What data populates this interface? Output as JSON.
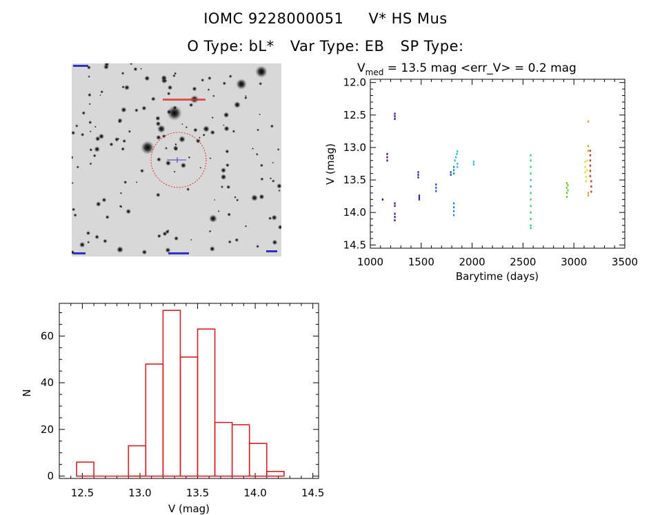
{
  "header": {
    "object_id": "IOMC 9228000051",
    "star_name": "V* HS Mus",
    "o_type_label": "O Type:",
    "o_type_value": "bL*",
    "var_type_label": "Var Type:",
    "var_type_value": "EB",
    "sp_type_label": "SP Type:",
    "sp_type_value": ""
  },
  "finder": {
    "description": "grayscale star field finder chart with red target circle"
  },
  "chart_data": [
    {
      "type": "scatter",
      "title_prefix": "V",
      "title_subscript": "med",
      "title_rest": " = 13.5 mag <err_V> = 0.2 mag",
      "xlabel": "Barytime (days)",
      "ylabel": "V (mag)",
      "xlim": [
        1000,
        3500
      ],
      "ylim": [
        14.55,
        11.95
      ],
      "y_inverted": true,
      "xticks": [
        "1000",
        "1500",
        "2000",
        "2500",
        "3000",
        "3500"
      ],
      "yticks": [
        "12.0",
        "12.5",
        "13.0",
        "13.5",
        "14.0",
        "14.5"
      ],
      "groups": [
        {
          "color": "#3a0a6e",
          "points": [
            [
              1120,
              13.8
            ]
          ]
        },
        {
          "color": "#4a1480",
          "points": [
            [
              1165,
              13.1
            ],
            [
              1165,
              13.15
            ],
            [
              1165,
              13.2
            ]
          ]
        },
        {
          "color": "#4a1480",
          "points": [
            [
              1240,
              12.48
            ],
            [
              1240,
              12.52
            ],
            [
              1240,
              12.56
            ],
            [
              1240,
              13.86
            ],
            [
              1240,
              13.9
            ],
            [
              1240,
              14.02
            ],
            [
              1240,
              14.07
            ],
            [
              1240,
              14.12
            ]
          ]
        },
        {
          "color": "#2830a0",
          "points": [
            [
              1470,
              13.38
            ],
            [
              1470,
              13.42
            ],
            [
              1470,
              13.46
            ],
            [
              1480,
              13.74
            ],
            [
              1480,
              13.77
            ],
            [
              1480,
              13.8
            ]
          ]
        },
        {
          "color": "#1e4fd0",
          "points": [
            [
              1645,
              13.57
            ],
            [
              1645,
              13.62
            ],
            [
              1645,
              13.67
            ],
            [
              1790,
              13.38
            ],
            [
              1790,
              13.42
            ]
          ]
        },
        {
          "color": "#1f7fe0",
          "points": [
            [
              1820,
              13.3
            ],
            [
              1820,
              13.35
            ],
            [
              1820,
              13.4
            ],
            [
              1820,
              13.86
            ],
            [
              1820,
              13.92
            ],
            [
              1820,
              13.98
            ],
            [
              1820,
              14.04
            ]
          ]
        },
        {
          "color": "#2ab8e0",
          "points": [
            [
              1830,
              13.2
            ],
            [
              1840,
              13.15
            ],
            [
              1850,
              13.1
            ],
            [
              1855,
              13.06
            ],
            [
              1855,
              13.25
            ],
            [
              1855,
              13.3
            ],
            [
              2015,
              13.22
            ],
            [
              2015,
              13.26
            ]
          ]
        },
        {
          "color": "#22d47a",
          "points": [
            [
              2575,
              13.12
            ],
            [
              2575,
              13.2
            ],
            [
              2575,
              13.3
            ],
            [
              2575,
              13.4
            ],
            [
              2575,
              13.5
            ],
            [
              2575,
              13.6
            ],
            [
              2575,
              13.7
            ],
            [
              2575,
              13.8
            ],
            [
              2575,
              13.9
            ],
            [
              2575,
              14.0
            ],
            [
              2575,
              14.1
            ],
            [
              2575,
              14.2
            ],
            [
              2575,
              14.24
            ]
          ]
        },
        {
          "color": "#60d030",
          "points": [
            [
              2930,
              13.55
            ],
            [
              2930,
              13.62
            ],
            [
              2930,
              13.7
            ],
            [
              2930,
              13.76
            ],
            [
              2940,
              13.58
            ],
            [
              2940,
              13.66
            ]
          ]
        },
        {
          "color": "#d8e020",
          "points": [
            [
              3110,
              13.22
            ],
            [
              3110,
              13.3
            ],
            [
              3110,
              13.38
            ],
            [
              3120,
              13.45
            ],
            [
              3120,
              13.52
            ],
            [
              3130,
              13.2
            ],
            [
              3130,
              13.35
            ]
          ]
        },
        {
          "color": "#e0a020",
          "points": [
            [
              3140,
              12.6
            ],
            [
              3140,
              12.98
            ],
            [
              3140,
              13.05
            ],
            [
              3140,
              13.7
            ],
            [
              3140,
              13.74
            ]
          ]
        },
        {
          "color": "#d83010",
          "points": [
            [
              3160,
              13.05
            ],
            [
              3160,
              13.12
            ],
            [
              3160,
              13.2
            ],
            [
              3160,
              13.28
            ],
            [
              3160,
              13.36
            ],
            [
              3160,
              13.44
            ],
            [
              3170,
              13.52
            ],
            [
              3170,
              13.6
            ],
            [
              3170,
              13.68
            ]
          ]
        }
      ]
    },
    {
      "type": "bar",
      "subtype": "histogram",
      "xlabel": "V (mag)",
      "ylabel": "N",
      "xlim": [
        12.3,
        14.55
      ],
      "ylim": [
        -1,
        74
      ],
      "xticks": [
        "12.5",
        "13.0",
        "13.5",
        "14.0",
        "14.5"
      ],
      "yticks": [
        "0",
        "20",
        "40",
        "60"
      ],
      "bin_width": 0.15,
      "bin_starts": [
        12.45,
        12.6,
        12.75,
        12.9,
        13.05,
        13.2,
        13.35,
        13.5,
        13.65,
        13.8,
        13.95,
        14.1,
        14.25
      ],
      "values": [
        6,
        0,
        0,
        13,
        48,
        71,
        51,
        63,
        23,
        22,
        14,
        2,
        0
      ],
      "bar_color": "#d42020"
    }
  ]
}
